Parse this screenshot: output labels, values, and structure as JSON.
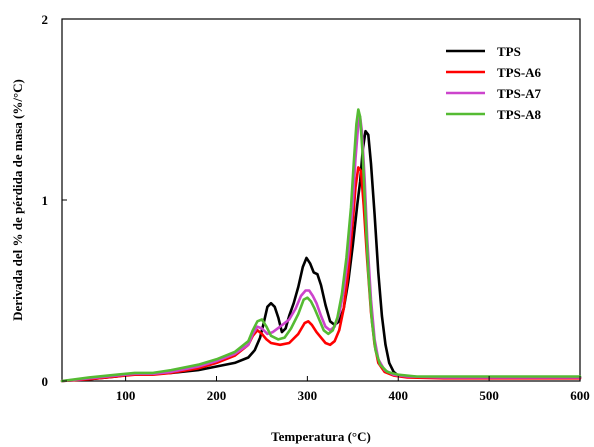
{
  "chart_data": {
    "type": "line",
    "xlabel": "Temperatura (°C)",
    "ylabel": "Derivada del % de pérdida de masa (%/°C)",
    "xlim": [
      30,
      600
    ],
    "ylim": [
      0,
      2
    ],
    "x_ticks": [
      "100",
      "200",
      "300",
      "400",
      "500",
      "600"
    ],
    "y_ticks": [
      "0",
      "1",
      "2"
    ],
    "grid": false,
    "legend_position": "top-right",
    "series": [
      {
        "name": "TPS",
        "color": "#000000",
        "points": [
          [
            30,
            0.0
          ],
          [
            60,
            0.01
          ],
          [
            90,
            0.025
          ],
          [
            110,
            0.04
          ],
          [
            130,
            0.04
          ],
          [
            150,
            0.045
          ],
          [
            180,
            0.06
          ],
          [
            200,
            0.08
          ],
          [
            220,
            0.1
          ],
          [
            235,
            0.13
          ],
          [
            242,
            0.17
          ],
          [
            248,
            0.24
          ],
          [
            252,
            0.32
          ],
          [
            256,
            0.41
          ],
          [
            260,
            0.43
          ],
          [
            264,
            0.41
          ],
          [
            268,
            0.35
          ],
          [
            272,
            0.27
          ],
          [
            276,
            0.29
          ],
          [
            280,
            0.36
          ],
          [
            285,
            0.43
          ],
          [
            290,
            0.52
          ],
          [
            295,
            0.63
          ],
          [
            299,
            0.68
          ],
          [
            303,
            0.65
          ],
          [
            307,
            0.6
          ],
          [
            311,
            0.59
          ],
          [
            315,
            0.53
          ],
          [
            320,
            0.42
          ],
          [
            325,
            0.33
          ],
          [
            330,
            0.31
          ],
          [
            335,
            0.33
          ],
          [
            340,
            0.4
          ],
          [
            345,
            0.55
          ],
          [
            350,
            0.75
          ],
          [
            355,
            0.98
          ],
          [
            358,
            1.1
          ],
          [
            361,
            1.28
          ],
          [
            364,
            1.38
          ],
          [
            367,
            1.36
          ],
          [
            370,
            1.2
          ],
          [
            374,
            0.92
          ],
          [
            378,
            0.6
          ],
          [
            382,
            0.36
          ],
          [
            386,
            0.2
          ],
          [
            390,
            0.1
          ],
          [
            395,
            0.05
          ],
          [
            400,
            0.03
          ],
          [
            410,
            0.025
          ],
          [
            450,
            0.02
          ],
          [
            500,
            0.02
          ],
          [
            550,
            0.02
          ],
          [
            600,
            0.02
          ]
        ]
      },
      {
        "name": "TPS-A6",
        "color": "#ff0000",
        "points": [
          [
            30,
            0.0
          ],
          [
            60,
            0.01
          ],
          [
            90,
            0.025
          ],
          [
            110,
            0.035
          ],
          [
            130,
            0.035
          ],
          [
            150,
            0.045
          ],
          [
            180,
            0.07
          ],
          [
            200,
            0.1
          ],
          [
            220,
            0.14
          ],
          [
            235,
            0.2
          ],
          [
            240,
            0.25
          ],
          [
            245,
            0.28
          ],
          [
            250,
            0.26
          ],
          [
            255,
            0.23
          ],
          [
            260,
            0.21
          ],
          [
            270,
            0.2
          ],
          [
            280,
            0.21
          ],
          [
            290,
            0.26
          ],
          [
            297,
            0.32
          ],
          [
            301,
            0.33
          ],
          [
            305,
            0.31
          ],
          [
            310,
            0.27
          ],
          [
            315,
            0.24
          ],
          [
            320,
            0.21
          ],
          [
            325,
            0.2
          ],
          [
            330,
            0.22
          ],
          [
            335,
            0.28
          ],
          [
            340,
            0.4
          ],
          [
            345,
            0.6
          ],
          [
            350,
            0.88
          ],
          [
            353,
            1.07
          ],
          [
            356,
            1.18
          ],
          [
            359,
            1.16
          ],
          [
            362,
            0.97
          ],
          [
            366,
            0.66
          ],
          [
            370,
            0.38
          ],
          [
            374,
            0.2
          ],
          [
            378,
            0.1
          ],
          [
            385,
            0.05
          ],
          [
            395,
            0.03
          ],
          [
            410,
            0.02
          ],
          [
            450,
            0.015
          ],
          [
            500,
            0.015
          ],
          [
            550,
            0.015
          ],
          [
            600,
            0.015
          ]
        ]
      },
      {
        "name": "TPS-A7",
        "color": "#cc44cc",
        "points": [
          [
            30,
            0.0
          ],
          [
            60,
            0.015
          ],
          [
            90,
            0.03
          ],
          [
            110,
            0.04
          ],
          [
            130,
            0.04
          ],
          [
            150,
            0.05
          ],
          [
            180,
            0.08
          ],
          [
            200,
            0.11
          ],
          [
            220,
            0.15
          ],
          [
            235,
            0.2
          ],
          [
            240,
            0.26
          ],
          [
            245,
            0.3
          ],
          [
            250,
            0.29
          ],
          [
            256,
            0.26
          ],
          [
            262,
            0.27
          ],
          [
            270,
            0.3
          ],
          [
            280,
            0.34
          ],
          [
            287,
            0.4
          ],
          [
            293,
            0.47
          ],
          [
            298,
            0.5
          ],
          [
            302,
            0.5
          ],
          [
            306,
            0.47
          ],
          [
            310,
            0.43
          ],
          [
            315,
            0.36
          ],
          [
            320,
            0.3
          ],
          [
            325,
            0.28
          ],
          [
            330,
            0.3
          ],
          [
            335,
            0.37
          ],
          [
            340,
            0.5
          ],
          [
            345,
            0.7
          ],
          [
            350,
            0.98
          ],
          [
            353,
            1.23
          ],
          [
            356,
            1.42
          ],
          [
            358,
            1.46
          ],
          [
            360,
            1.38
          ],
          [
            363,
            1.12
          ],
          [
            366,
            0.78
          ],
          [
            370,
            0.45
          ],
          [
            374,
            0.23
          ],
          [
            378,
            0.12
          ],
          [
            385,
            0.06
          ],
          [
            395,
            0.035
          ],
          [
            410,
            0.025
          ],
          [
            450,
            0.02
          ],
          [
            500,
            0.02
          ],
          [
            550,
            0.02
          ],
          [
            600,
            0.02
          ]
        ]
      },
      {
        "name": "TPS-A8",
        "color": "#55bb33",
        "points": [
          [
            30,
            0.0
          ],
          [
            60,
            0.02
          ],
          [
            90,
            0.035
          ],
          [
            110,
            0.045
          ],
          [
            130,
            0.045
          ],
          [
            150,
            0.06
          ],
          [
            180,
            0.09
          ],
          [
            200,
            0.12
          ],
          [
            220,
            0.16
          ],
          [
            235,
            0.22
          ],
          [
            240,
            0.28
          ],
          [
            245,
            0.33
          ],
          [
            250,
            0.34
          ],
          [
            255,
            0.3
          ],
          [
            260,
            0.25
          ],
          [
            268,
            0.23
          ],
          [
            275,
            0.24
          ],
          [
            282,
            0.29
          ],
          [
            290,
            0.37
          ],
          [
            296,
            0.45
          ],
          [
            300,
            0.46
          ],
          [
            304,
            0.44
          ],
          [
            308,
            0.4
          ],
          [
            313,
            0.34
          ],
          [
            318,
            0.28
          ],
          [
            323,
            0.26
          ],
          [
            328,
            0.28
          ],
          [
            333,
            0.35
          ],
          [
            338,
            0.48
          ],
          [
            343,
            0.68
          ],
          [
            348,
            0.96
          ],
          [
            351,
            1.2
          ],
          [
            354,
            1.42
          ],
          [
            356,
            1.5
          ],
          [
            358,
            1.46
          ],
          [
            361,
            1.24
          ],
          [
            364,
            0.92
          ],
          [
            367,
            0.6
          ],
          [
            371,
            0.33
          ],
          [
            375,
            0.17
          ],
          [
            380,
            0.09
          ],
          [
            388,
            0.05
          ],
          [
            400,
            0.035
          ],
          [
            420,
            0.025
          ],
          [
            450,
            0.025
          ],
          [
            500,
            0.025
          ],
          [
            550,
            0.025
          ],
          [
            600,
            0.025
          ]
        ]
      }
    ]
  }
}
